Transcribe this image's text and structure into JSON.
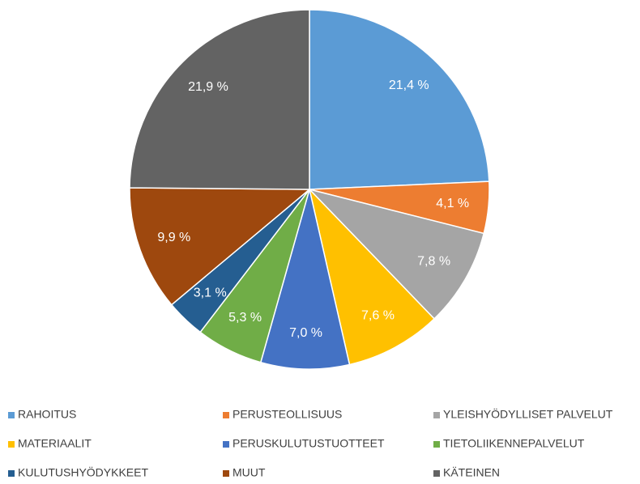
{
  "chart_data": {
    "type": "pie",
    "categories": [
      "RAHOITUS",
      "PERUSTEOLLISUUS",
      "YLEISHYÖDYLLISET PALVELUT",
      "MATERIAALIT",
      "PERUSKULUTUSTUOTTEET",
      "TIETOLIIKENNEPALVELUT",
      "KULUTUSHYÖDYKKEET",
      "MUUT",
      "KÄTEINEN"
    ],
    "values": [
      21.4,
      4.1,
      7.8,
      7.6,
      7.0,
      5.3,
      3.1,
      9.9,
      21.9
    ],
    "value_labels": [
      "21,4  %",
      "4,1 %",
      "7,8 %",
      "7,6 %",
      "7,0 %",
      "5,3 %",
      "3,1 %",
      "9,9 %",
      "21,9 %"
    ],
    "colors": [
      "#5b9bd5",
      "#ed7d31",
      "#a5a5a5",
      "#ffc000",
      "#4472c4",
      "#70ad47",
      "#255e91",
      "#9e480e",
      "#636363"
    ],
    "legend": "bottom"
  }
}
